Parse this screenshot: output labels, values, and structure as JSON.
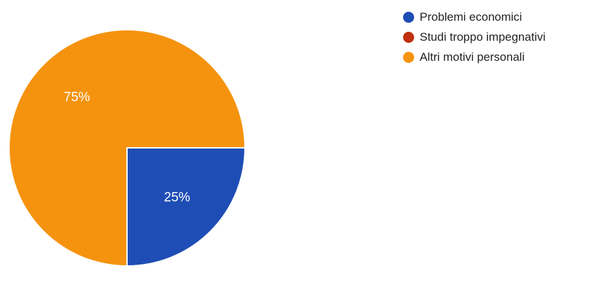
{
  "chart_data": {
    "type": "pie",
    "title": "",
    "series": [
      {
        "name": "Problemi economici",
        "value": 25,
        "label": "25%",
        "color": "#1e4db5"
      },
      {
        "name": "Studi troppo impegnativi",
        "value": 0,
        "label": "",
        "color": "#c0300f"
      },
      {
        "name": "Altri motivi personali",
        "value": 75,
        "label": "75%",
        "color": "#f5930f"
      }
    ],
    "legend_position": "top-right",
    "slice_border_color": "#ffffff",
    "label_color": "#ffffff"
  }
}
